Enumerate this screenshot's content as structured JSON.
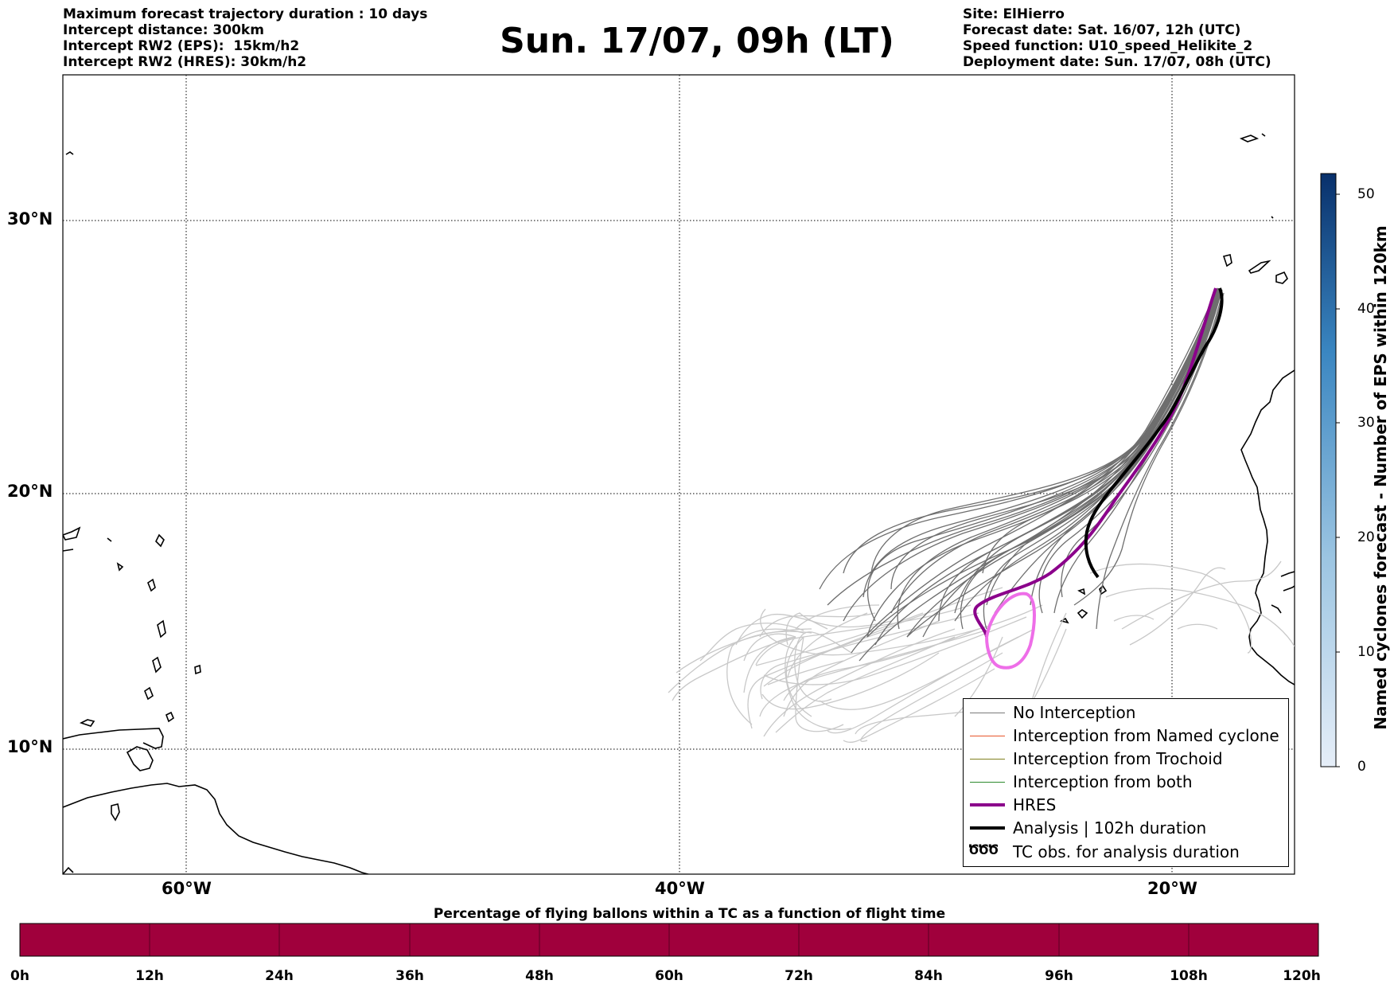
{
  "header": {
    "left_lines": [
      "Maximum forecast trajectory duration : 10 days",
      "Intercept distance: 300km",
      "Intercept RW2 (EPS):  15km/h2",
      "Intercept RW2 (HRES): 30km/h2"
    ],
    "title": "Sun. 17/07, 09h (LT)",
    "right_lines": [
      "Site: ElHierro",
      "Forecast date: Sat. 16/07, 12h (UTC)",
      "Speed function: U10_speed_Helikite_2",
      "Deployment date: Sun. 17/07, 08h (UTC)"
    ]
  },
  "map": {
    "lat_labels": [
      "30°N",
      "20°N",
      "10°N"
    ],
    "lon_labels": [
      "60°W",
      "40°W",
      "20°W"
    ]
  },
  "legend": {
    "items": [
      {
        "label": "No Interception",
        "color": "#7a7a7a"
      },
      {
        "label": "Interception from Named cyclone",
        "color": "#e8552a"
      },
      {
        "label": "Interception from Trochoid",
        "color": "#808020"
      },
      {
        "label": "Interception from both",
        "color": "#2e8b2e"
      },
      {
        "label": "HRES",
        "color": "#8b008b"
      },
      {
        "label": "Analysis | 102h duration",
        "color": "#000000"
      },
      {
        "label": "TC obs. for analysis duration",
        "symbol": "ԾԾԾ"
      }
    ]
  },
  "colorbar": {
    "label": "Named cyclones forecast - Number of EPS within 120km",
    "ticks": [
      "0",
      "10",
      "20",
      "30",
      "40",
      "50"
    ],
    "color_low": "#e6eef8",
    "color_high": "#08306b"
  },
  "bottom_bar": {
    "caption": "Percentage of flying ballons within a TC as a function of flight time",
    "color": "#a0003c",
    "ticks": [
      "0h",
      "12h",
      "24h",
      "36h",
      "48h",
      "60h",
      "72h",
      "84h",
      "96h",
      "108h",
      "120h"
    ]
  }
}
